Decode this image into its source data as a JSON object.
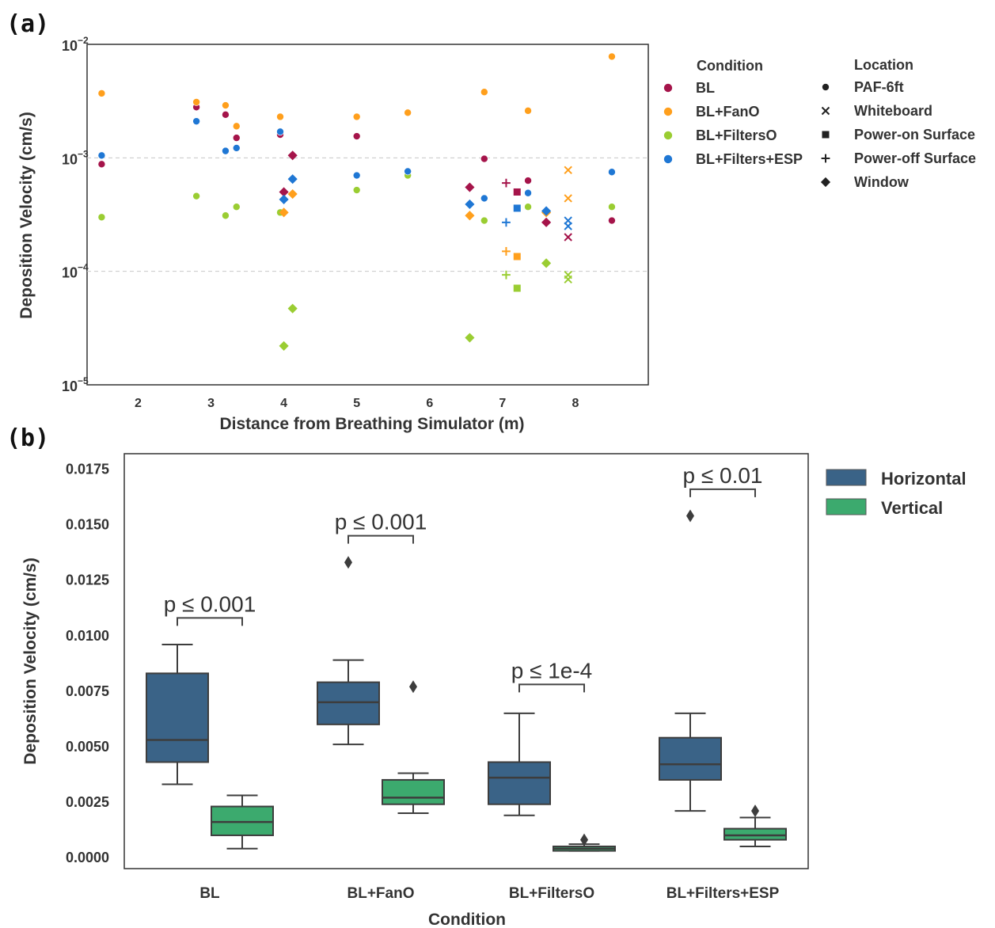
{
  "panel_labels": {
    "a": "(a)",
    "b": "(b)"
  },
  "chart_data": [
    {
      "type": "scatter",
      "title": "",
      "xlabel": "Distance from Breathing Simulator (m)",
      "ylabel": "Deposition Velocity (cm/s)",
      "xlim": [
        1.3,
        9.0
      ],
      "x_ticks": [
        2,
        3,
        4,
        5,
        6,
        7,
        8
      ],
      "ylim": [
        1e-05,
        0.01
      ],
      "y_scale": "log",
      "y_ticks": [
        {
          "value": 1e-05,
          "base": "10",
          "exp": "−5"
        },
        {
          "value": 0.0001,
          "base": "10",
          "exp": "−4"
        },
        {
          "value": 0.001,
          "base": "10",
          "exp": "−3"
        },
        {
          "value": 0.01,
          "base": "10",
          "exp": "−2"
        }
      ],
      "grid": "dashed horizontal lines at 1e-4 and 1e-3",
      "legend_placement": "right, outside",
      "condition_title": "Condition",
      "location_title": "Location",
      "conditions": [
        {
          "name": "BL",
          "color": "#A5144A"
        },
        {
          "name": "BL+FanO",
          "color": "#FF9F1C"
        },
        {
          "name": "BL+FiltersO",
          "color": "#9ACD32"
        },
        {
          "name": "BL+Filters+ESP",
          "color": "#1F77D4"
        }
      ],
      "locations": [
        {
          "name": "PAF-6ft",
          "marker": "circle"
        },
        {
          "name": "Whiteboard",
          "marker": "x"
        },
        {
          "name": "Power-on Surface",
          "marker": "square"
        },
        {
          "name": "Power-off Surface",
          "marker": "plus"
        },
        {
          "name": "Window",
          "marker": "diamond"
        }
      ],
      "points": [
        {
          "x": 1.5,
          "y": 0.00088,
          "c": 0,
          "m": "circle"
        },
        {
          "x": 1.5,
          "y": 0.0037,
          "c": 1,
          "m": "circle"
        },
        {
          "x": 1.5,
          "y": 0.0003,
          "c": 2,
          "m": "circle"
        },
        {
          "x": 1.5,
          "y": 0.00105,
          "c": 3,
          "m": "circle"
        },
        {
          "x": 2.8,
          "y": 0.0028,
          "c": 0,
          "m": "circle"
        },
        {
          "x": 2.8,
          "y": 0.0031,
          "c": 1,
          "m": "circle"
        },
        {
          "x": 2.8,
          "y": 0.00046,
          "c": 2,
          "m": "circle"
        },
        {
          "x": 2.8,
          "y": 0.0021,
          "c": 3,
          "m": "circle"
        },
        {
          "x": 3.2,
          "y": 0.0024,
          "c": 0,
          "m": "circle"
        },
        {
          "x": 3.2,
          "y": 0.0029,
          "c": 1,
          "m": "circle"
        },
        {
          "x": 3.2,
          "y": 0.00031,
          "c": 2,
          "m": "circle"
        },
        {
          "x": 3.2,
          "y": 0.00115,
          "c": 3,
          "m": "circle"
        },
        {
          "x": 3.35,
          "y": 0.0015,
          "c": 0,
          "m": "circle"
        },
        {
          "x": 3.35,
          "y": 0.0019,
          "c": 1,
          "m": "circle"
        },
        {
          "x": 3.35,
          "y": 0.00037,
          "c": 2,
          "m": "circle"
        },
        {
          "x": 3.35,
          "y": 0.00122,
          "c": 3,
          "m": "circle"
        },
        {
          "x": 3.95,
          "y": 0.0016,
          "c": 0,
          "m": "circle"
        },
        {
          "x": 3.95,
          "y": 0.0023,
          "c": 1,
          "m": "circle"
        },
        {
          "x": 3.95,
          "y": 0.00033,
          "c": 2,
          "m": "circle"
        },
        {
          "x": 3.95,
          "y": 0.0017,
          "c": 3,
          "m": "circle"
        },
        {
          "x": 4.0,
          "y": 0.0005,
          "c": 0,
          "m": "diamond"
        },
        {
          "x": 4.0,
          "y": 0.00033,
          "c": 1,
          "m": "diamond"
        },
        {
          "x": 4.0,
          "y": 2.2e-05,
          "c": 2,
          "m": "diamond"
        },
        {
          "x": 4.0,
          "y": 0.00043,
          "c": 3,
          "m": "diamond"
        },
        {
          "x": 4.12,
          "y": 0.00105,
          "c": 0,
          "m": "diamond"
        },
        {
          "x": 4.12,
          "y": 0.00048,
          "c": 1,
          "m": "diamond"
        },
        {
          "x": 4.12,
          "y": 4.7e-05,
          "c": 2,
          "m": "diamond"
        },
        {
          "x": 4.12,
          "y": 0.00065,
          "c": 3,
          "m": "diamond"
        },
        {
          "x": 5.0,
          "y": 0.00155,
          "c": 0,
          "m": "circle"
        },
        {
          "x": 5.0,
          "y": 0.0023,
          "c": 1,
          "m": "circle"
        },
        {
          "x": 5.0,
          "y": 0.00052,
          "c": 2,
          "m": "circle"
        },
        {
          "x": 5.0,
          "y": 0.0007,
          "c": 3,
          "m": "circle"
        },
        {
          "x": 5.7,
          "y": 0.0025,
          "c": 0,
          "m": "circle"
        },
        {
          "x": 5.7,
          "y": 0.0025,
          "c": 1,
          "m": "circle"
        },
        {
          "x": 5.7,
          "y": 0.0007,
          "c": 2,
          "m": "circle"
        },
        {
          "x": 5.7,
          "y": 0.00076,
          "c": 3,
          "m": "circle"
        },
        {
          "x": 6.55,
          "y": 0.00055,
          "c": 0,
          "m": "diamond"
        },
        {
          "x": 6.55,
          "y": 0.00031,
          "c": 1,
          "m": "diamond"
        },
        {
          "x": 6.55,
          "y": 2.6e-05,
          "c": 2,
          "m": "diamond"
        },
        {
          "x": 6.55,
          "y": 0.00039,
          "c": 3,
          "m": "diamond"
        },
        {
          "x": 6.75,
          "y": 0.00098,
          "c": 0,
          "m": "circle"
        },
        {
          "x": 6.75,
          "y": 0.0038,
          "c": 1,
          "m": "circle"
        },
        {
          "x": 6.75,
          "y": 0.00028,
          "c": 2,
          "m": "circle"
        },
        {
          "x": 6.75,
          "y": 0.00044,
          "c": 3,
          "m": "circle"
        },
        {
          "x": 7.05,
          "y": 0.0006,
          "c": 0,
          "m": "plus"
        },
        {
          "x": 7.05,
          "y": 0.00015,
          "c": 1,
          "m": "plus"
        },
        {
          "x": 7.05,
          "y": 9.3e-05,
          "c": 2,
          "m": "plus"
        },
        {
          "x": 7.05,
          "y": 0.00027,
          "c": 3,
          "m": "plus"
        },
        {
          "x": 7.2,
          "y": 0.0005,
          "c": 0,
          "m": "square"
        },
        {
          "x": 7.2,
          "y": 0.000135,
          "c": 1,
          "m": "square"
        },
        {
          "x": 7.2,
          "y": 7.1e-05,
          "c": 2,
          "m": "square"
        },
        {
          "x": 7.2,
          "y": 0.00036,
          "c": 3,
          "m": "square"
        },
        {
          "x": 7.35,
          "y": 0.00063,
          "c": 0,
          "m": "circle"
        },
        {
          "x": 7.35,
          "y": 0.0026,
          "c": 1,
          "m": "circle"
        },
        {
          "x": 7.35,
          "y": 0.00037,
          "c": 2,
          "m": "circle"
        },
        {
          "x": 7.35,
          "y": 0.00049,
          "c": 3,
          "m": "circle"
        },
        {
          "x": 7.6,
          "y": 0.00027,
          "c": 0,
          "m": "diamond"
        },
        {
          "x": 7.6,
          "y": 0.00033,
          "c": 1,
          "m": "diamond"
        },
        {
          "x": 7.6,
          "y": 0.000118,
          "c": 2,
          "m": "diamond"
        },
        {
          "x": 7.6,
          "y": 0.00034,
          "c": 3,
          "m": "diamond"
        },
        {
          "x": 7.9,
          "y": 0.0002,
          "c": 0,
          "m": "x"
        },
        {
          "x": 7.9,
          "y": 0.00078,
          "c": 1,
          "m": "x"
        },
        {
          "x": 7.9,
          "y": 0.00044,
          "c": 1,
          "m": "x"
        },
        {
          "x": 7.9,
          "y": 9.3e-05,
          "c": 2,
          "m": "x"
        },
        {
          "x": 7.9,
          "y": 8.5e-05,
          "c": 2,
          "m": "x"
        },
        {
          "x": 7.9,
          "y": 0.00028,
          "c": 3,
          "m": "x"
        },
        {
          "x": 7.9,
          "y": 0.00025,
          "c": 3,
          "m": "x"
        },
        {
          "x": 8.5,
          "y": 0.00028,
          "c": 0,
          "m": "circle"
        },
        {
          "x": 8.5,
          "y": 0.0078,
          "c": 1,
          "m": "circle"
        },
        {
          "x": 8.5,
          "y": 0.00037,
          "c": 2,
          "m": "circle"
        },
        {
          "x": 8.5,
          "y": 0.00075,
          "c": 3,
          "m": "circle"
        }
      ]
    },
    {
      "type": "box",
      "title": "",
      "xlabel": "Condition",
      "ylabel": "Deposition Velocity (cm/s)",
      "ylim": [
        -0.0005,
        0.0182
      ],
      "y_ticks": [
        "0.0000",
        "0.0025",
        "0.0050",
        "0.0075",
        "0.0100",
        "0.0125",
        "0.0150",
        "0.0175"
      ],
      "categories": [
        "BL",
        "BL+FanO",
        "BL+FiltersO",
        "BL+Filters+ESP"
      ],
      "legend_placement": "right, outside",
      "series": [
        {
          "name": "Horizontal",
          "color": "#3A6387",
          "boxes": [
            {
              "whislo": 0.0033,
              "q1": 0.0043,
              "med": 0.0053,
              "q3": 0.0083,
              "whishi": 0.0096,
              "fliers": []
            },
            {
              "whislo": 0.0051,
              "q1": 0.006,
              "med": 0.007,
              "q3": 0.0079,
              "whishi": 0.0089,
              "fliers": [
                0.0133
              ]
            },
            {
              "whislo": 0.0019,
              "q1": 0.0024,
              "med": 0.0036,
              "q3": 0.0043,
              "whishi": 0.0065,
              "fliers": []
            },
            {
              "whislo": 0.0021,
              "q1": 0.0035,
              "med": 0.0042,
              "q3": 0.0054,
              "whishi": 0.0065,
              "fliers": [
                0.0154
              ]
            }
          ]
        },
        {
          "name": "Vertical",
          "color": "#3CAA6E",
          "boxes": [
            {
              "whislo": 0.0004,
              "q1": 0.001,
              "med": 0.0016,
              "q3": 0.0023,
              "whishi": 0.0028,
              "fliers": []
            },
            {
              "whislo": 0.002,
              "q1": 0.0024,
              "med": 0.0027,
              "q3": 0.0035,
              "whishi": 0.0038,
              "fliers": [
                0.0077
              ]
            },
            {
              "whislo": 0.0003,
              "q1": 0.0003,
              "med": 0.0004,
              "q3": 0.0005,
              "whishi": 0.0006,
              "fliers": [
                0.0008
              ]
            },
            {
              "whislo": 0.0005,
              "q1": 0.0008,
              "med": 0.001,
              "q3": 0.0013,
              "whishi": 0.0018,
              "fliers": [
                0.0021
              ]
            }
          ]
        }
      ],
      "annotations": [
        {
          "category": "BL",
          "text": "p ≤ 0.001",
          "bracket_y": 0.0108
        },
        {
          "category": "BL+FanO",
          "text": "p ≤ 0.001",
          "bracket_y": 0.0145
        },
        {
          "category": "BL+FiltersO",
          "text": "p ≤ 1e-4",
          "bracket_y": 0.0078
        },
        {
          "category": "BL+Filters+ESP",
          "text": "p ≤ 0.01",
          "bracket_y": 0.0166
        }
      ]
    }
  ]
}
